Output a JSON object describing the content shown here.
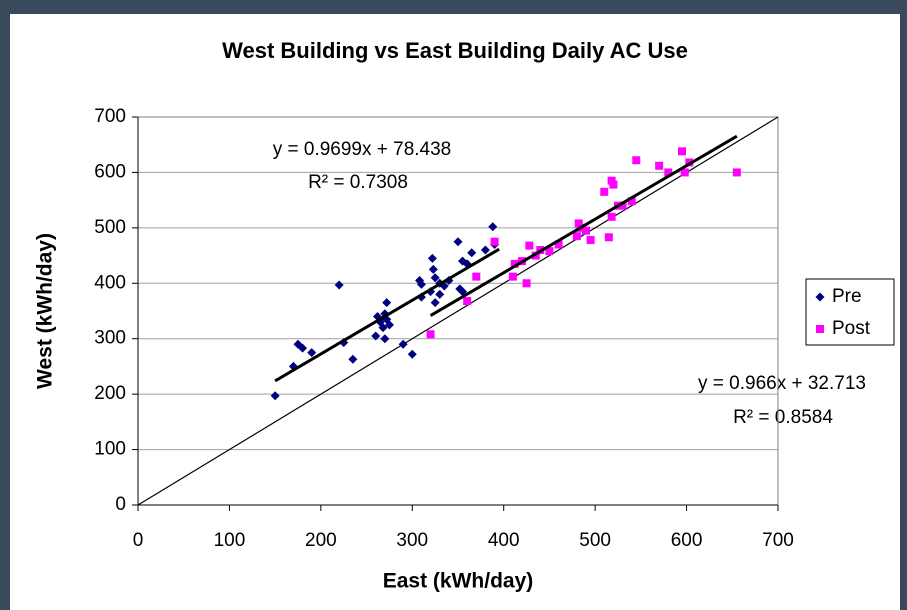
{
  "chart_data": {
    "type": "scatter",
    "title": "West Building vs East Building Daily AC Use",
    "x_label": "East (kWh/day)",
    "y_label": "West (kWh/day)",
    "xlim": [
      0,
      700
    ],
    "xticks": [
      0,
      100,
      200,
      300,
      400,
      500,
      600,
      700
    ],
    "ylim": [
      0,
      700
    ],
    "yticks": [
      0,
      100,
      200,
      300,
      400,
      500,
      600,
      700
    ],
    "grid": true,
    "legend": "right",
    "series": [
      {
        "name": "Pre",
        "color": "#000080",
        "marker": "diamond",
        "x": [
          150,
          170,
          175,
          180,
          190,
          220,
          225,
          235,
          260,
          262,
          265,
          268,
          270,
          270,
          272,
          272,
          275,
          290,
          300,
          308,
          310,
          310,
          320,
          322,
          323,
          325,
          325,
          330,
          330,
          335,
          340,
          350,
          352,
          355,
          355,
          360,
          365,
          380,
          388,
          390
        ],
        "values": [
          197,
          250,
          290,
          283,
          275,
          397,
          293,
          263,
          305,
          340,
          330,
          320,
          345,
          300,
          365,
          335,
          325,
          290,
          272,
          405,
          398,
          375,
          385,
          445,
          425,
          410,
          365,
          400,
          380,
          395,
          405,
          475,
          390,
          385,
          440,
          435,
          455,
          460,
          502,
          470
        ]
      },
      {
        "name": "Post",
        "color": "#ff00ff",
        "marker": "square",
        "x": [
          320,
          360,
          370,
          390,
          410,
          412,
          420,
          425,
          428,
          435,
          440,
          450,
          460,
          480,
          482,
          485,
          490,
          495,
          510,
          515,
          518,
          518,
          520,
          525,
          530,
          540,
          545,
          570,
          580,
          595,
          598,
          603,
          655
        ],
        "values": [
          308,
          368,
          412,
          475,
          412,
          435,
          440,
          400,
          468,
          450,
          460,
          458,
          470,
          485,
          508,
          500,
          495,
          478,
          565,
          483,
          520,
          585,
          578,
          540,
          540,
          548,
          622,
          612,
          600,
          638,
          600,
          618,
          600
        ]
      }
    ],
    "trendlines": [
      {
        "slope": 0.9699,
        "intercept": 78.438,
        "x": [
          150,
          395
        ],
        "equation": "y = 0.9699x + 78.438",
        "r_squared": "R² = 0.7308"
      },
      {
        "slope": 0.966,
        "intercept": 32.713,
        "x": [
          320,
          655
        ],
        "equation": "y = 0.966x + 32.713",
        "r_squared": "R² = 0.8584"
      }
    ],
    "reference_line": {
      "x": [
        0,
        700
      ],
      "values": [
        0,
        700
      ]
    }
  }
}
